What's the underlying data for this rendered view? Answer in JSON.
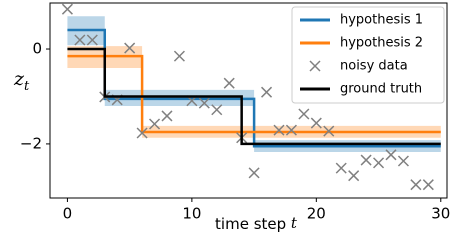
{
  "chart_data": {
    "type": "line",
    "xlabel": [
      "time step ",
      "t"
    ],
    "ylabel": [
      "z",
      "t"
    ],
    "xlim": [
      -1.4,
      30.5
    ],
    "ylim": [
      -3.14,
      0.97
    ],
    "xticks": [
      0,
      10,
      20,
      30
    ],
    "yticks": [
      0,
      {
        "value": -2,
        "label": "−2"
      }
    ],
    "legend": "upper right",
    "series": [
      {
        "name": "hypothesis 1",
        "type": "line",
        "color": "#1f77b4",
        "x": [
          0,
          3,
          3,
          15,
          15,
          30
        ],
        "values": [
          0.4,
          0.4,
          -1.05,
          -1.05,
          -2.05,
          -2.05
        ],
        "upper": [
          0.69,
          0.69,
          -0.86,
          -0.86,
          -1.92,
          -1.92
        ],
        "lower": [
          0.08,
          0.08,
          -1.2,
          -1.2,
          -2.17,
          -2.17
        ]
      },
      {
        "name": "hypothesis 2",
        "type": "line",
        "color": "#ff7f0e",
        "x": [
          0,
          6,
          6,
          30
        ],
        "values": [
          -0.15,
          -0.15,
          -1.75,
          -1.75
        ],
        "upper": [
          0.06,
          0.06,
          -1.62,
          -1.62
        ],
        "lower": [
          -0.4,
          -0.4,
          -1.87,
          -1.87
        ]
      },
      {
        "name": "noisy data",
        "type": "scatter",
        "color": "#808080",
        "x": [
          0,
          1,
          2,
          3,
          4,
          5,
          6,
          7,
          8,
          9,
          10,
          11,
          12,
          13,
          14,
          15,
          16,
          17,
          18,
          19,
          20,
          21,
          22,
          23,
          24,
          25,
          26,
          27,
          28,
          29
        ],
        "values": [
          0.84,
          0.19,
          0.19,
          -1.01,
          -1.07,
          0.02,
          -1.77,
          -1.58,
          -1.41,
          -0.15,
          -1.09,
          -1.14,
          -1.28,
          -0.72,
          -1.87,
          -2.61,
          -0.91,
          -1.71,
          -1.71,
          -1.37,
          -1.56,
          -1.73,
          -2.51,
          -2.67,
          -2.34,
          -2.4,
          -2.23,
          -2.36,
          -2.86,
          -2.86
        ]
      },
      {
        "name": "ground truth",
        "type": "line",
        "color": "#000000",
        "x": [
          0,
          3,
          3,
          14,
          14,
          30
        ],
        "values": [
          0,
          0,
          -1,
          -1,
          -2,
          -2
        ]
      }
    ]
  }
}
